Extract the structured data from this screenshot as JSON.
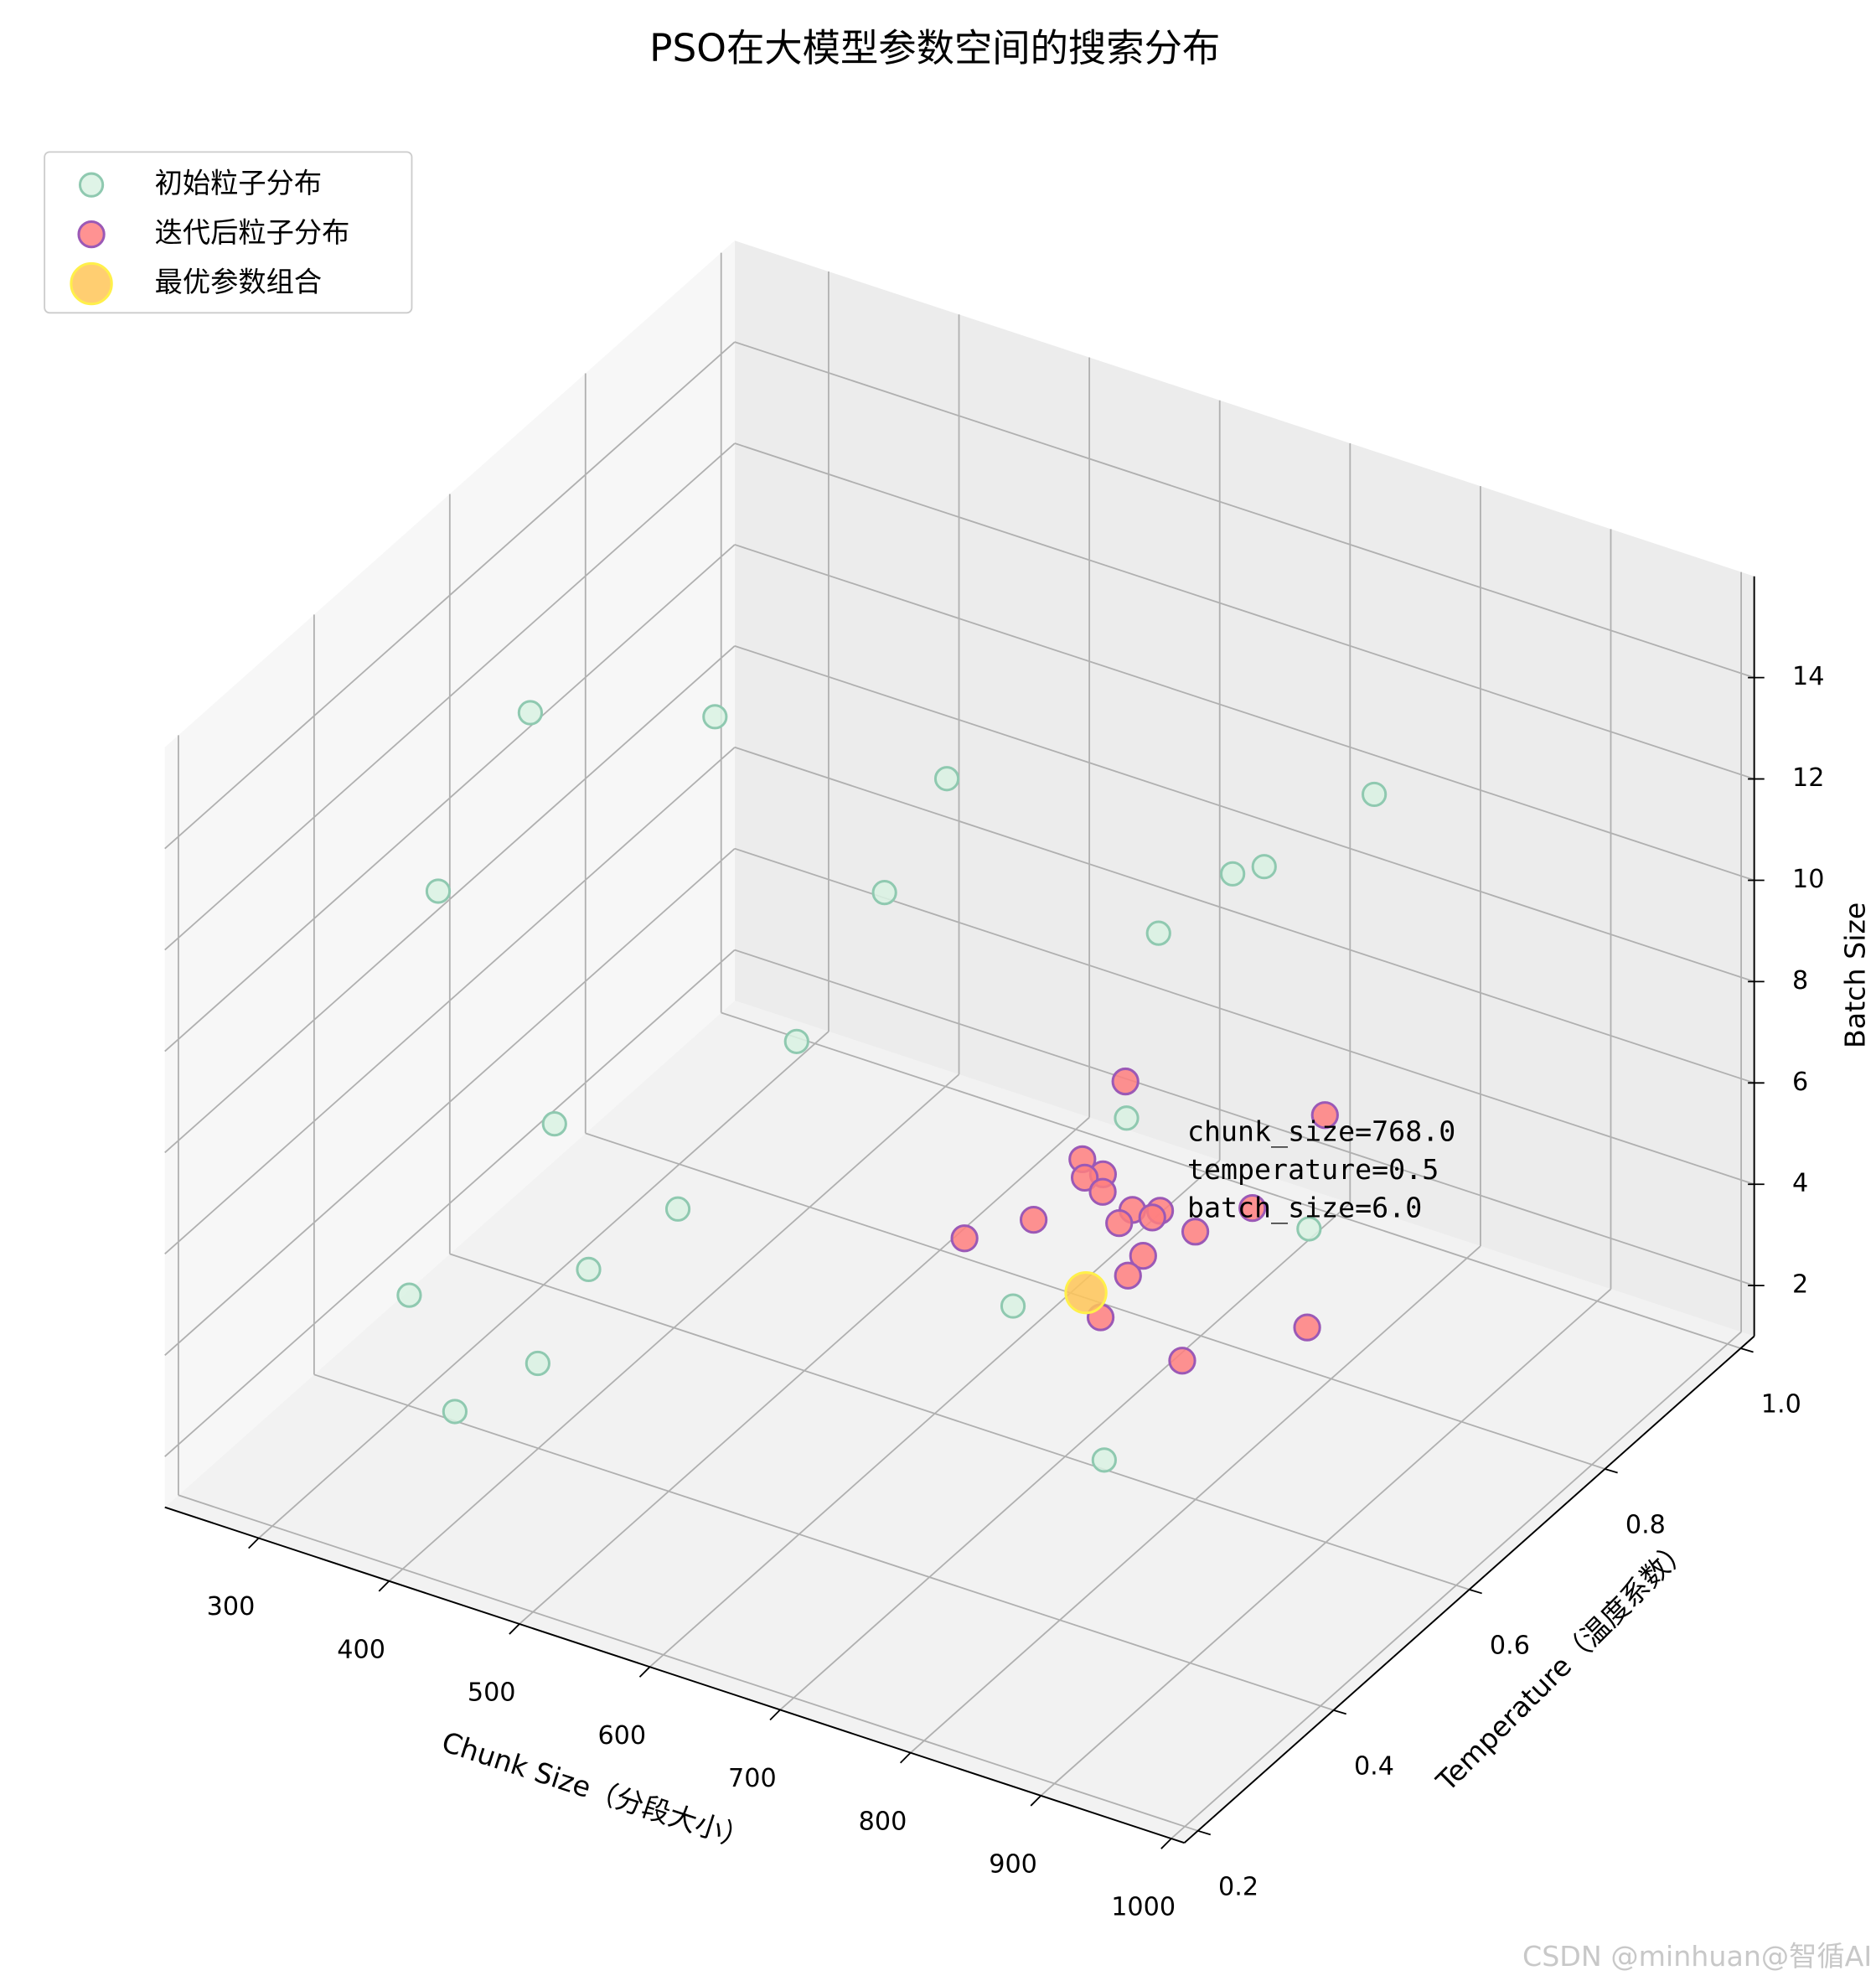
{
  "chart_data": {
    "type": "scatter3d",
    "title": "PSO在大模型参数空间的搜索分布",
    "xlabel": "Chunk Size（分段大小）",
    "ylabel": "Temperature（温度系数）",
    "zlabel": "Batch Size",
    "xlim": [
      228,
      1010
    ],
    "ylim": [
      0.18,
      1.02
    ],
    "zlim": [
      1,
      16
    ],
    "xticks": [
      300,
      400,
      500,
      600,
      700,
      800,
      900,
      1000
    ],
    "yticks": [
      0.2,
      0.4,
      0.6,
      0.8,
      {
        "value": 1,
        "label": "1.0"
      }
    ],
    "zticks": [
      2,
      4,
      6,
      8,
      10,
      12,
      14
    ],
    "grid": true,
    "legend": "upper left",
    "series": [
      {
        "name": "初始粒子分布",
        "color": "#d9f2e3",
        "edgecolor": "#8fc9b0",
        "size": 9,
        "x": [
          347,
          421,
          526,
          807,
          344,
          499,
          714,
          759,
          678,
          416,
          617,
          428,
          455,
          757,
          475,
          327,
          410,
          608,
          362,
          756
        ],
        "y": [
          0.49,
          0.62,
          0.76,
          0.85,
          0.36,
          0.72,
          0.82,
          0.78,
          0.78,
          0.75,
          0.85,
          0.37,
          0.5,
          0.85,
          0.33,
          0.35,
          0.38,
          0.7,
          0.35,
          0.55
        ],
        "z": [
          14,
          13,
          11,
          12,
          12,
          9,
          10,
          11,
          9,
          5,
          4,
          8,
          5,
          3,
          6,
          4,
          3,
          2,
          2,
          2
        ]
      },
      {
        "name": "迭代后粒子分布",
        "color": "#ff7f7f",
        "edgecolor": "#9b59b6",
        "size": 10,
        "x": [
          689,
          790,
          682,
          703,
          663,
          682,
          710,
          726,
          776,
          629,
          679,
          694,
          602,
          727,
          713,
          717,
          696,
          818,
          769
        ],
        "y": [
          0.71,
          0.81,
          0.66,
          0.65,
          0.7,
          0.69,
          0.68,
          0.69,
          0.73,
          0.69,
          0.72,
          0.74,
          0.64,
          0.74,
          0.69,
          0.66,
          0.66,
          0.73,
          0.64
        ],
        "z": [
          7,
          6,
          6,
          6,
          5,
          5,
          5,
          5,
          5,
          4,
          4,
          4,
          4,
          4,
          4,
          4,
          3,
          3,
          3
        ]
      },
      {
        "name": "最优参数组合",
        "color": "#ffc658",
        "edgecolor": "#fff04a",
        "size": 16,
        "x": [
          768
        ],
        "y": [
          0.5
        ],
        "z": [
          6
        ]
      }
    ],
    "annotation": [
      "chunk_size=768.0",
      "temperature=0.5",
      "batch_size=6.0"
    ],
    "annotation_color": "#d94fb8",
    "watermark": "CSDN @minhuan@智循AI"
  }
}
